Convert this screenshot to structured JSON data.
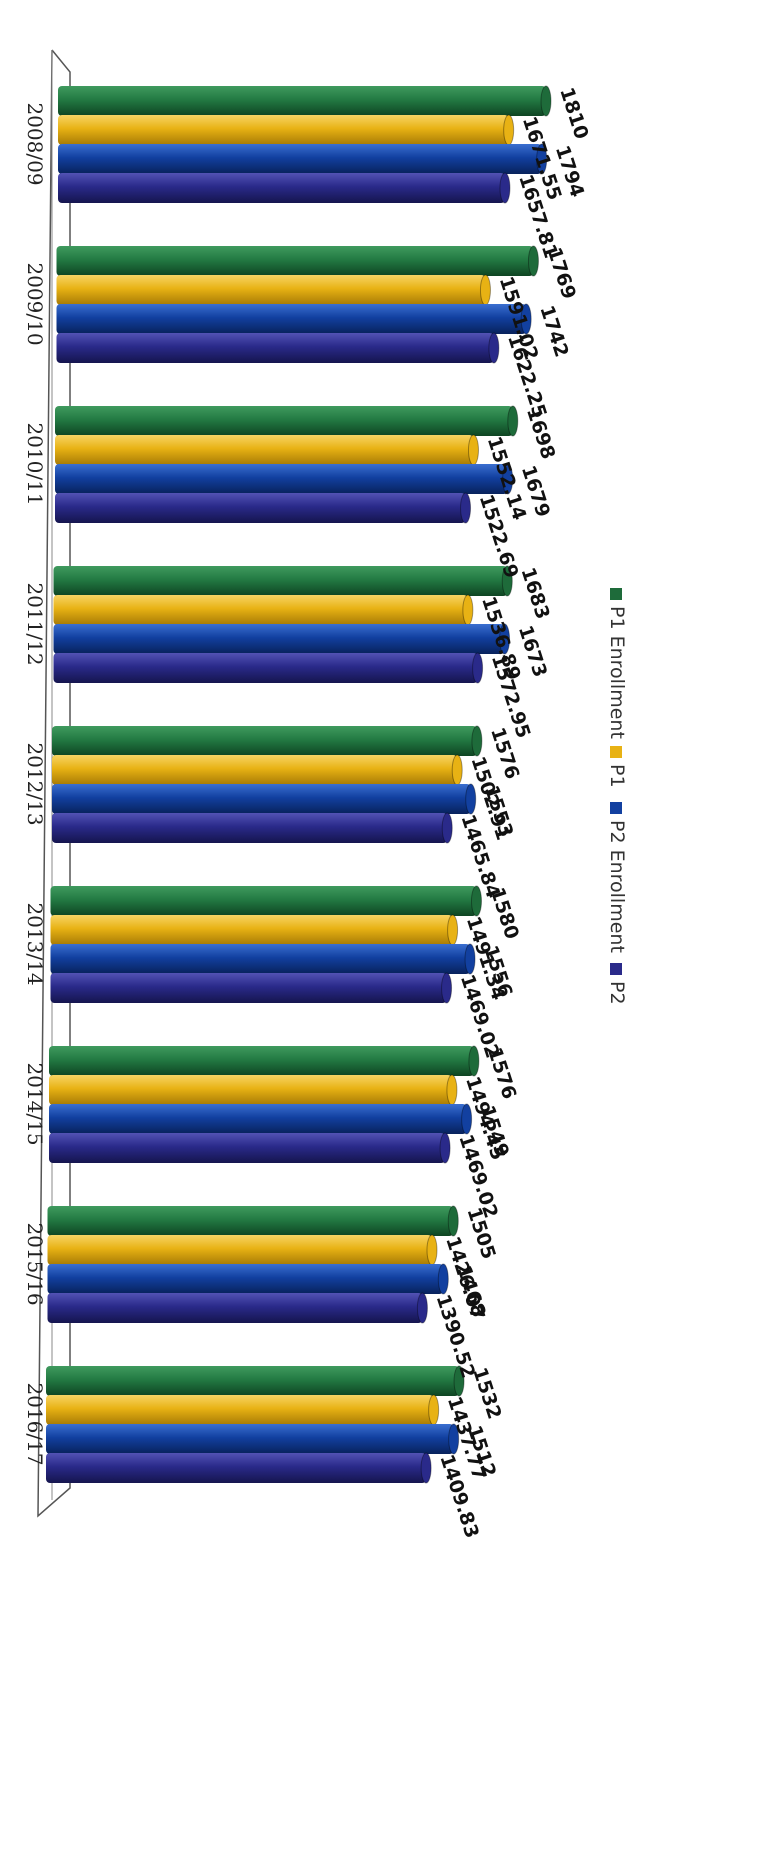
{
  "chart_data": {
    "type": "bar",
    "orientation": "horizontal",
    "categories": [
      "2008/09",
      "2009/10",
      "2010/11",
      "2011/12",
      "2012/13",
      "2013/14",
      "2014/15",
      "2015/16",
      "2016/17"
    ],
    "series": [
      {
        "name": "P1 Enrollment",
        "color": "#1e6b3a",
        "values": [
          1810,
          1769,
          1698,
          1683,
          1576,
          1580,
          1576,
          1505,
          1532
        ]
      },
      {
        "name": "P1",
        "color": "#e8b214",
        "values": [
          1671.55,
          1591.02,
          1552.14,
          1536.89,
          1502.91,
          1491.34,
          1494.45,
          1426.07,
          1437.77
        ]
      },
      {
        "name": "P2 Enrollment",
        "color": "#1240a0",
        "values": [
          1794,
          1742,
          1679,
          1673,
          1553,
          1556,
          1549,
          1468,
          1512
        ]
      },
      {
        "name": "P2",
        "color": "#2a2a8a",
        "values": [
          1657.81,
          1622.25,
          1522.69,
          1572.95,
          1465.84,
          1469.02,
          1469.02,
          1390.52,
          1409.83
        ]
      }
    ],
    "xlim": [
      0,
      1810
    ],
    "legend_position": "right",
    "grid": false
  }
}
